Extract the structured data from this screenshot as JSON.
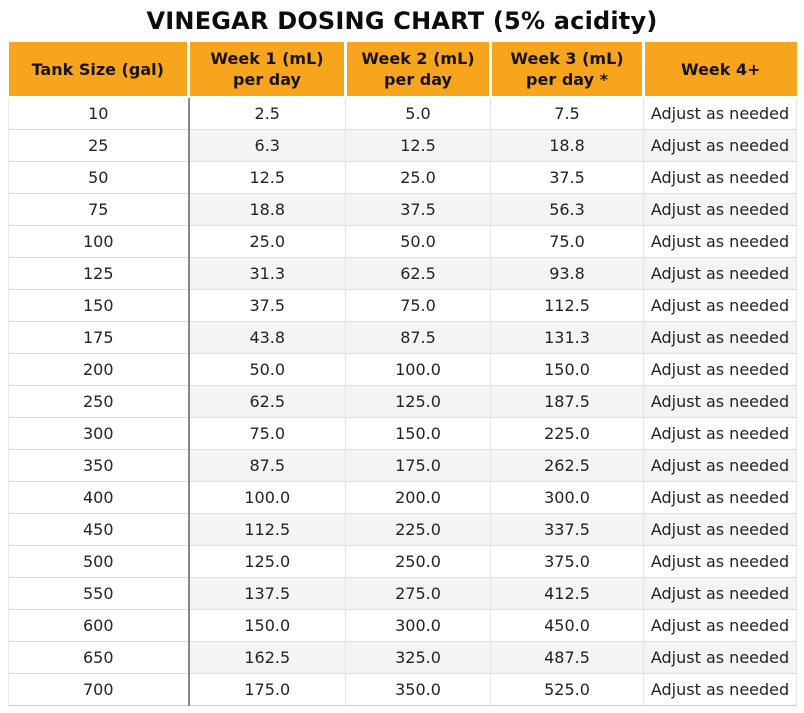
{
  "title": "VINEGAR DOSING CHART (5% acidity)",
  "colors": {
    "header_bg": "#F8A51E",
    "header_text": "#171310",
    "row_alt_bg": "#F4F4F4",
    "grid_line": "#DCDCDC",
    "tank_divider": "#888888",
    "body_text": "#232323"
  },
  "table": {
    "headers": [
      {
        "line1": "Tank Size (gal)",
        "line2": ""
      },
      {
        "line1": "Week 1 (mL)",
        "line2": "per day"
      },
      {
        "line1": "Week 2 (mL)",
        "line2": "per day"
      },
      {
        "line1": "Week 3 (mL)",
        "line2": "per day *"
      },
      {
        "line1": "Week 4+",
        "line2": ""
      }
    ],
    "rows": [
      [
        "10",
        "2.5",
        "5.0",
        "7.5",
        "Adjust as needed"
      ],
      [
        "25",
        "6.3",
        "12.5",
        "18.8",
        "Adjust as needed"
      ],
      [
        "50",
        "12.5",
        "25.0",
        "37.5",
        "Adjust as needed"
      ],
      [
        "75",
        "18.8",
        "37.5",
        "56.3",
        "Adjust as needed"
      ],
      [
        "100",
        "25.0",
        "50.0",
        "75.0",
        "Adjust as needed"
      ],
      [
        "125",
        "31.3",
        "62.5",
        "93.8",
        "Adjust as needed"
      ],
      [
        "150",
        "37.5",
        "75.0",
        "112.5",
        "Adjust as needed"
      ],
      [
        "175",
        "43.8",
        "87.5",
        "131.3",
        "Adjust as needed"
      ],
      [
        "200",
        "50.0",
        "100.0",
        "150.0",
        "Adjust as needed"
      ],
      [
        "250",
        "62.5",
        "125.0",
        "187.5",
        "Adjust as needed"
      ],
      [
        "300",
        "75.0",
        "150.0",
        "225.0",
        "Adjust as needed"
      ],
      [
        "350",
        "87.5",
        "175.0",
        "262.5",
        "Adjust as needed"
      ],
      [
        "400",
        "100.0",
        "200.0",
        "300.0",
        "Adjust as needed"
      ],
      [
        "450",
        "112.5",
        "225.0",
        "337.5",
        "Adjust as needed"
      ],
      [
        "500",
        "125.0",
        "250.0",
        "375.0",
        "Adjust as needed"
      ],
      [
        "550",
        "137.5",
        "275.0",
        "412.5",
        "Adjust as needed"
      ],
      [
        "600",
        "150.0",
        "300.0",
        "450.0",
        "Adjust as needed"
      ],
      [
        "650",
        "162.5",
        "325.0",
        "487.5",
        "Adjust as needed"
      ],
      [
        "700",
        "175.0",
        "350.0",
        "525.0",
        "Adjust as needed"
      ]
    ],
    "cell_names": [
      "tank-size-cell",
      "week1-dose-cell",
      "week2-dose-cell",
      "week3-dose-cell",
      "week4-note-cell"
    ]
  },
  "chart_data": {
    "type": "table",
    "title": "VINEGAR DOSING CHART (5% acidity)",
    "columns": [
      "Tank Size (gal)",
      "Week 1 (mL) per day",
      "Week 2 (mL) per day",
      "Week 3 (mL) per day *",
      "Week 4+"
    ],
    "tank_sizes_gal": [
      10,
      25,
      50,
      75,
      100,
      125,
      150,
      175,
      200,
      250,
      300,
      350,
      400,
      450,
      500,
      550,
      600,
      650,
      700
    ],
    "week1_ml_per_day": [
      2.5,
      6.3,
      12.5,
      18.8,
      25.0,
      31.3,
      37.5,
      43.8,
      50.0,
      62.5,
      75.0,
      87.5,
      100.0,
      112.5,
      125.0,
      137.5,
      150.0,
      162.5,
      175.0
    ],
    "week2_ml_per_day": [
      5.0,
      12.5,
      25.0,
      37.5,
      50.0,
      62.5,
      75.0,
      87.5,
      100.0,
      125.0,
      150.0,
      175.0,
      200.0,
      225.0,
      250.0,
      275.0,
      300.0,
      325.0,
      350.0
    ],
    "week3_ml_per_day": [
      7.5,
      18.8,
      37.5,
      56.3,
      75.0,
      93.8,
      112.5,
      131.3,
      150.0,
      187.5,
      225.0,
      262.5,
      300.0,
      337.5,
      375.0,
      412.5,
      450.0,
      487.5,
      525.0
    ],
    "week4_plus_note": "Adjust as needed"
  }
}
